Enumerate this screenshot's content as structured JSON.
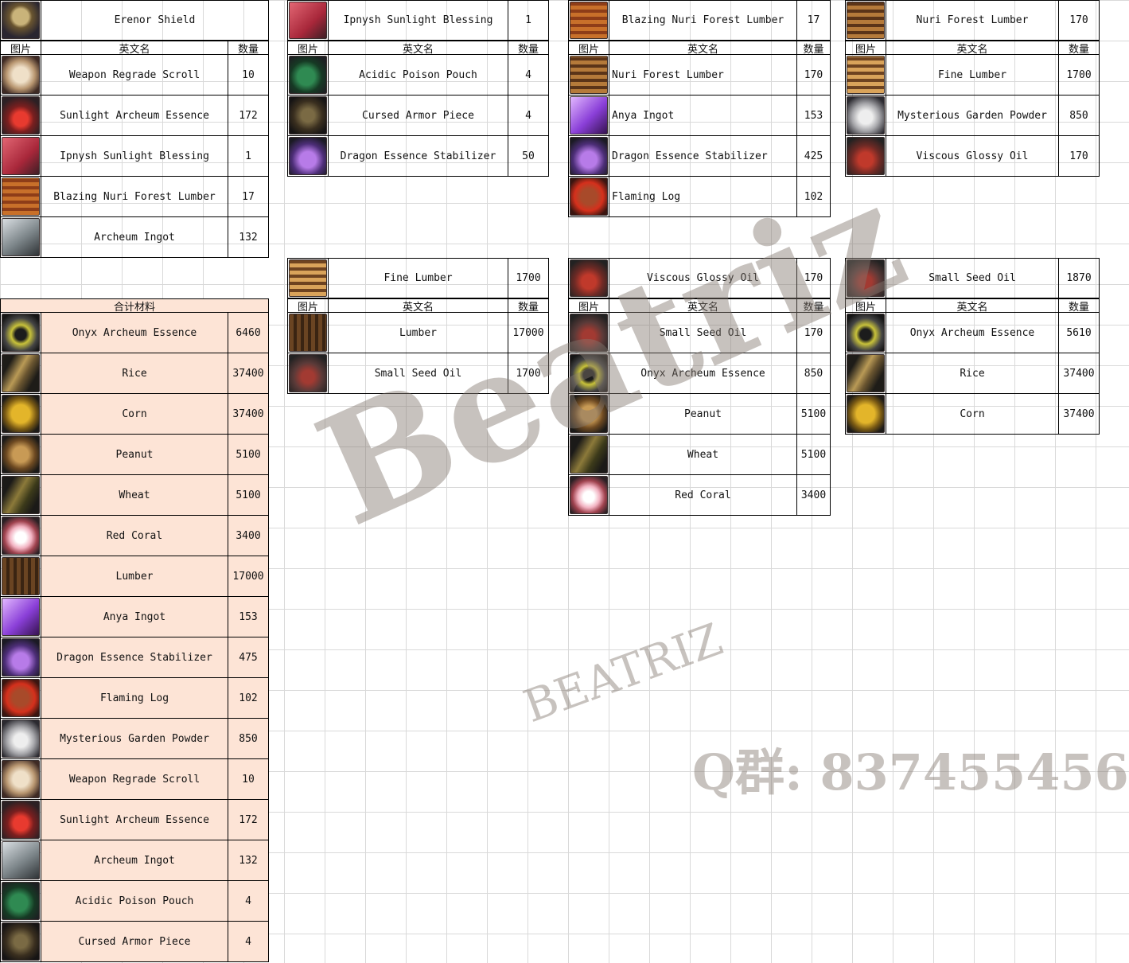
{
  "headers": {
    "icon": "图片",
    "name": "英文名",
    "qty": "数量"
  },
  "recipes": [
    {
      "id": "erenor-shield",
      "product": {
        "icon": "shield",
        "name": "Erenor Shield",
        "qty": ""
      },
      "ingredients": [
        {
          "icon": "scroll-icon",
          "name": "Weapon Regrade Scroll",
          "qty": "10"
        },
        {
          "icon": "red-essence-icon",
          "name": "Sunlight Archeum Essence",
          "qty": "172"
        },
        {
          "icon": "blessing-icon",
          "name": "Ipnysh Sunlight Blessing",
          "qty": "1"
        },
        {
          "icon": "blazing-lumber-icon",
          "name": "Blazing Nuri Forest Lumber",
          "qty": "17"
        },
        {
          "icon": "archeum-ingot-icon",
          "name": "Archeum Ingot",
          "qty": "132"
        }
      ]
    },
    {
      "id": "ipnysh-sunlight-blessing",
      "product": {
        "icon": "blessing-icon",
        "name": "Ipnysh Sunlight Blessing",
        "qty": "1"
      },
      "ingredients": [
        {
          "icon": "poison-pouch-icon",
          "name": "Acidic Poison Pouch",
          "qty": "4"
        },
        {
          "icon": "cursed-armor-icon",
          "name": "Cursed Armor Piece",
          "qty": "4"
        },
        {
          "icon": "dragon-essence-icon",
          "name": "Dragon Essence Stabilizer",
          "qty": "50"
        }
      ]
    },
    {
      "id": "blazing-nuri-forest-lumber",
      "product": {
        "icon": "blazing-lumber-icon",
        "name": "Blazing Nuri Forest Lumber",
        "qty": "17"
      },
      "ingredients": [
        {
          "icon": "nuri-lumber-icon",
          "name": "Nuri Forest Lumber",
          "qty": "170"
        },
        {
          "icon": "anya-ingot-icon",
          "name": "Anya Ingot",
          "qty": "153"
        },
        {
          "icon": "dragon-essence-icon",
          "name": "Dragon Essence Stabilizer",
          "qty": "425"
        },
        {
          "icon": "flaming-log-icon",
          "name": "Flaming Log",
          "qty": "102"
        }
      ]
    },
    {
      "id": "nuri-forest-lumber",
      "product": {
        "icon": "nuri-lumber-icon",
        "name": "Nuri Forest Lumber",
        "qty": "170"
      },
      "ingredients": [
        {
          "icon": "fine-lumber-icon",
          "name": "Fine Lumber",
          "qty": "1700"
        },
        {
          "icon": "garden-powder-icon",
          "name": "Mysterious Garden Powder",
          "qty": "850"
        },
        {
          "icon": "viscous-oil-icon",
          "name": "Viscous Glossy Oil",
          "qty": "170"
        }
      ]
    },
    {
      "id": "fine-lumber",
      "product": {
        "icon": "fine-lumber-icon",
        "name": "Fine Lumber",
        "qty": "1700"
      },
      "ingredients": [
        {
          "icon": "lumber-icon",
          "name": "Lumber",
          "qty": "17000"
        },
        {
          "icon": "small-seed-oil-icon",
          "name": "Small Seed Oil",
          "qty": "1700"
        }
      ]
    },
    {
      "id": "viscous-glossy-oil",
      "product": {
        "icon": "viscous-oil-icon",
        "name": "Viscous Glossy Oil",
        "qty": "170"
      },
      "ingredients": [
        {
          "icon": "small-seed-oil-icon",
          "name": "Small Seed Oil",
          "qty": "170"
        },
        {
          "icon": "onyx-essence-icon",
          "name": "Onyx Archeum Essence",
          "qty": "850"
        },
        {
          "icon": "peanut-icon",
          "name": "Peanut",
          "qty": "5100"
        },
        {
          "icon": "wheat-icon",
          "name": "Wheat",
          "qty": "5100"
        },
        {
          "icon": "red-coral-icon",
          "name": "Red Coral",
          "qty": "3400"
        }
      ]
    },
    {
      "id": "small-seed-oil",
      "product": {
        "icon": "small-seed-oil-icon",
        "name": "Small Seed Oil",
        "qty": "1870"
      },
      "ingredients": [
        {
          "icon": "onyx-essence-icon",
          "name": "Onyx Archeum Essence",
          "qty": "5610"
        },
        {
          "icon": "rice-icon",
          "name": "Rice",
          "qty": "37400"
        },
        {
          "icon": "corn-icon",
          "name": "Corn",
          "qty": "37400"
        }
      ]
    }
  ],
  "totals": {
    "title": "合计材料",
    "items": [
      {
        "icon": "onyx-essence-icon",
        "name": "Onyx Archeum Essence",
        "qty": "6460"
      },
      {
        "icon": "rice-icon",
        "name": "Rice",
        "qty": "37400"
      },
      {
        "icon": "corn-icon",
        "name": "Corn",
        "qty": "37400"
      },
      {
        "icon": "peanut-icon",
        "name": "Peanut",
        "qty": "5100"
      },
      {
        "icon": "wheat-icon",
        "name": "Wheat",
        "qty": "5100"
      },
      {
        "icon": "red-coral-icon",
        "name": "Red Coral",
        "qty": "3400"
      },
      {
        "icon": "lumber-icon",
        "name": "Lumber",
        "qty": "17000"
      },
      {
        "icon": "anya-ingot-icon",
        "name": "Anya Ingot",
        "qty": "153"
      },
      {
        "icon": "dragon-essence-icon",
        "name": "Dragon Essence Stabilizer",
        "qty": "475"
      },
      {
        "icon": "flaming-log-icon",
        "name": "Flaming Log",
        "qty": "102"
      },
      {
        "icon": "garden-powder-icon",
        "name": "Mysterious Garden Powder",
        "qty": "850"
      },
      {
        "icon": "scroll-icon",
        "name": "Weapon Regrade Scroll",
        "qty": "10"
      },
      {
        "icon": "red-essence-icon",
        "name": "Sunlight Archeum Essence",
        "qty": "172"
      },
      {
        "icon": "archeum-ingot-icon",
        "name": "Archeum Ingot",
        "qty": "132"
      },
      {
        "icon": "poison-pouch-icon",
        "name": "Acidic Poison Pouch",
        "qty": "4"
      },
      {
        "icon": "cursed-armor-icon",
        "name": "Cursed Armor Piece",
        "qty": "4"
      }
    ]
  },
  "watermark": {
    "name": "Beatriz",
    "name_caps": "BEATRIZ",
    "contact": "Q群: 837455456"
  }
}
